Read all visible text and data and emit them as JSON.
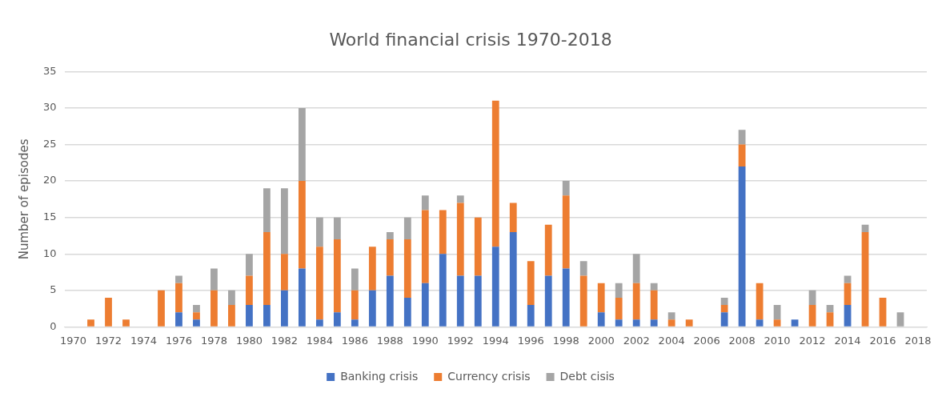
{
  "chart_data": {
    "type": "bar",
    "title": "World financial crisis 1970-2018",
    "ylabel": "Number of episodes",
    "stacked": true,
    "grid": "y",
    "legend": "bottom",
    "categories": [
      "1970",
      null,
      "1972",
      null,
      "1974",
      null,
      "1976",
      null,
      "1978",
      null,
      "1980",
      null,
      "1982",
      null,
      "1984",
      null,
      "1986",
      null,
      "1988",
      null,
      "1990",
      null,
      "1992",
      null,
      "1994",
      null,
      "1996",
      null,
      "1998",
      null,
      "2000",
      null,
      "2002",
      null,
      "2004",
      null,
      "2006",
      null,
      "2008",
      null,
      "2010",
      null,
      "2012",
      null,
      "2014",
      null,
      "2016",
      null,
      "2018"
    ],
    "ylim": [
      0,
      35
    ],
    "yticks": [
      0,
      5,
      10,
      15,
      20,
      25,
      30,
      35
    ],
    "series": [
      {
        "name": "Banking crisis",
        "color": "#4472c4",
        "values": [
          0,
          0,
          0,
          0,
          0,
          0,
          2,
          1,
          0,
          0,
          3,
          3,
          5,
          8,
          1,
          2,
          1,
          5,
          7,
          4,
          6,
          10,
          7,
          7,
          11,
          13,
          3,
          7,
          8,
          0,
          2,
          1,
          1,
          1,
          0,
          0,
          0,
          2,
          22,
          1,
          0,
          1,
          0,
          0,
          3,
          0,
          0,
          0,
          0
        ]
      },
      {
        "name": "Currency crisis",
        "color": "#ed7d31",
        "values": [
          0,
          1,
          4,
          1,
          0,
          5,
          4,
          1,
          5,
          3,
          4,
          10,
          5,
          12,
          10,
          10,
          4,
          6,
          5,
          8,
          10,
          6,
          10,
          8,
          20,
          4,
          6,
          7,
          10,
          7,
          4,
          3,
          5,
          4,
          1,
          1,
          0,
          1,
          3,
          5,
          1,
          0,
          3,
          2,
          3,
          13,
          4,
          0,
          0
        ]
      },
      {
        "name": "Debt cisis",
        "color": "#a5a5a5",
        "values": [
          0,
          0,
          0,
          0,
          0,
          0,
          1,
          1,
          3,
          2,
          3,
          6,
          9,
          10,
          4,
          3,
          3,
          0,
          1,
          3,
          2,
          0,
          1,
          0,
          0,
          0,
          0,
          0,
          2,
          2,
          0,
          2,
          4,
          1,
          1,
          0,
          0,
          1,
          2,
          0,
          2,
          0,
          2,
          1,
          1,
          1,
          0,
          2,
          0
        ]
      }
    ]
  }
}
